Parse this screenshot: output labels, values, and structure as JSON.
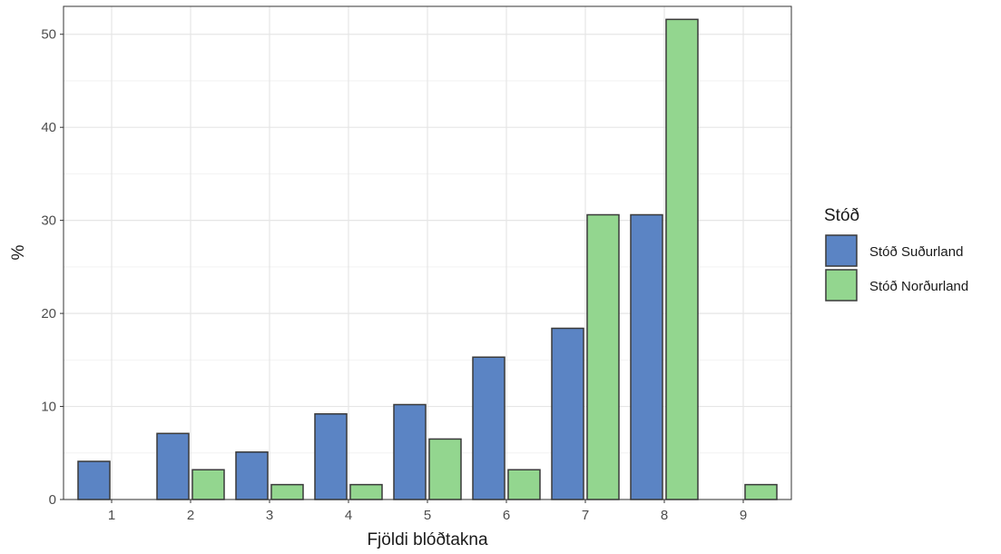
{
  "chart_data": {
    "type": "bar",
    "xlabel": "Fjöldi blóðtakna",
    "ylabel": "%",
    "categories": [
      "1",
      "2",
      "3",
      "4",
      "5",
      "6",
      "7",
      "8",
      "9"
    ],
    "ylim": [
      0,
      53
    ],
    "yticks": [
      0,
      10,
      20,
      30,
      40,
      50
    ],
    "grid": true,
    "legend": {
      "title": "Stóð",
      "position": "right"
    },
    "series": [
      {
        "name": "Stóð Suðurland",
        "color": "#5b84c4",
        "values": [
          4.1,
          7.1,
          5.1,
          9.2,
          10.2,
          15.3,
          18.4,
          30.6,
          null
        ]
      },
      {
        "name": "Stóð Norðurland",
        "color": "#93d68f",
        "values": [
          null,
          3.2,
          1.6,
          1.6,
          6.5,
          3.2,
          30.6,
          51.6,
          1.6
        ]
      }
    ]
  }
}
